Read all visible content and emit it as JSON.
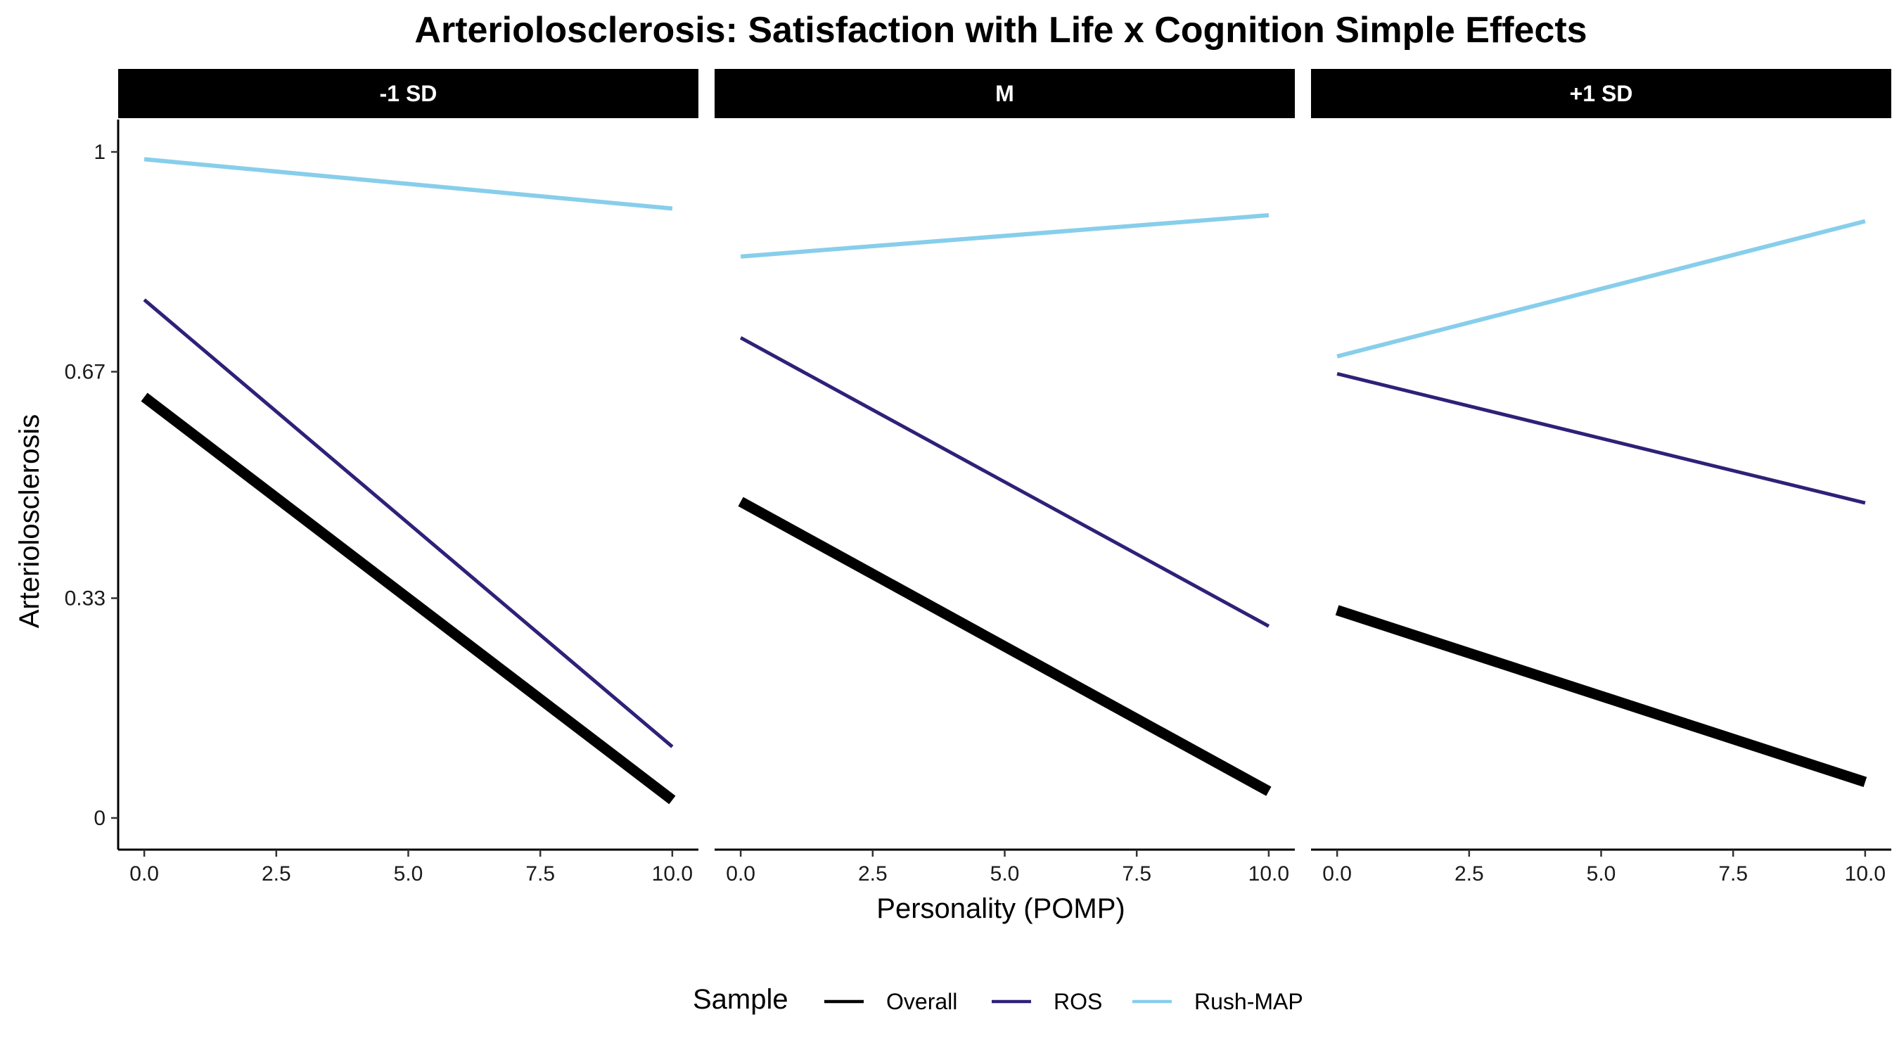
{
  "chart_data": {
    "type": "line",
    "title": "Arteriolosclerosis: Satisfaction with Life x Cognition Simple Effects",
    "xlabel": "Personality (POMP)",
    "ylabel": "Arteriolosclerosis",
    "xlim": [
      0,
      10
    ],
    "ylim": [
      0,
      1
    ],
    "x_ticks": [
      "0.0",
      "2.5",
      "5.0",
      "7.5",
      "10.0"
    ],
    "y_ticks": [
      "0",
      "0.33",
      "0.67",
      "1"
    ],
    "grid": false,
    "legend": {
      "title": "Sample",
      "position": "bottom",
      "entries": [
        "Overall",
        "ROS",
        "Rush-MAP"
      ]
    },
    "colors": {
      "Overall": "#000000",
      "ROS": "#2d2178",
      "Rush-MAP": "#87ceeb"
    },
    "panels": [
      {
        "label": "-1 SD",
        "series": [
          {
            "name": "Overall",
            "x": [
              0,
              10
            ],
            "y": [
              0.632,
              0.027
            ]
          },
          {
            "name": "ROS",
            "x": [
              0,
              10
            ],
            "y": [
              0.778,
              0.107
            ]
          },
          {
            "name": "Rush-MAP",
            "x": [
              0,
              10
            ],
            "y": [
              0.989,
              0.915
            ]
          }
        ]
      },
      {
        "label": "M",
        "series": [
          {
            "name": "Overall",
            "x": [
              0,
              10
            ],
            "y": [
              0.475,
              0.04
            ]
          },
          {
            "name": "ROS",
            "x": [
              0,
              10
            ],
            "y": [
              0.721,
              0.288
            ]
          },
          {
            "name": "Rush-MAP",
            "x": [
              0,
              10
            ],
            "y": [
              0.843,
              0.905
            ]
          }
        ]
      },
      {
        "label": "+1 SD",
        "series": [
          {
            "name": "Overall",
            "x": [
              0,
              10
            ],
            "y": [
              0.312,
              0.054
            ]
          },
          {
            "name": "ROS",
            "x": [
              0,
              10
            ],
            "y": [
              0.667,
              0.473
            ]
          },
          {
            "name": "Rush-MAP",
            "x": [
              0,
              10
            ],
            "y": [
              0.693,
              0.896
            ]
          }
        ]
      }
    ]
  }
}
